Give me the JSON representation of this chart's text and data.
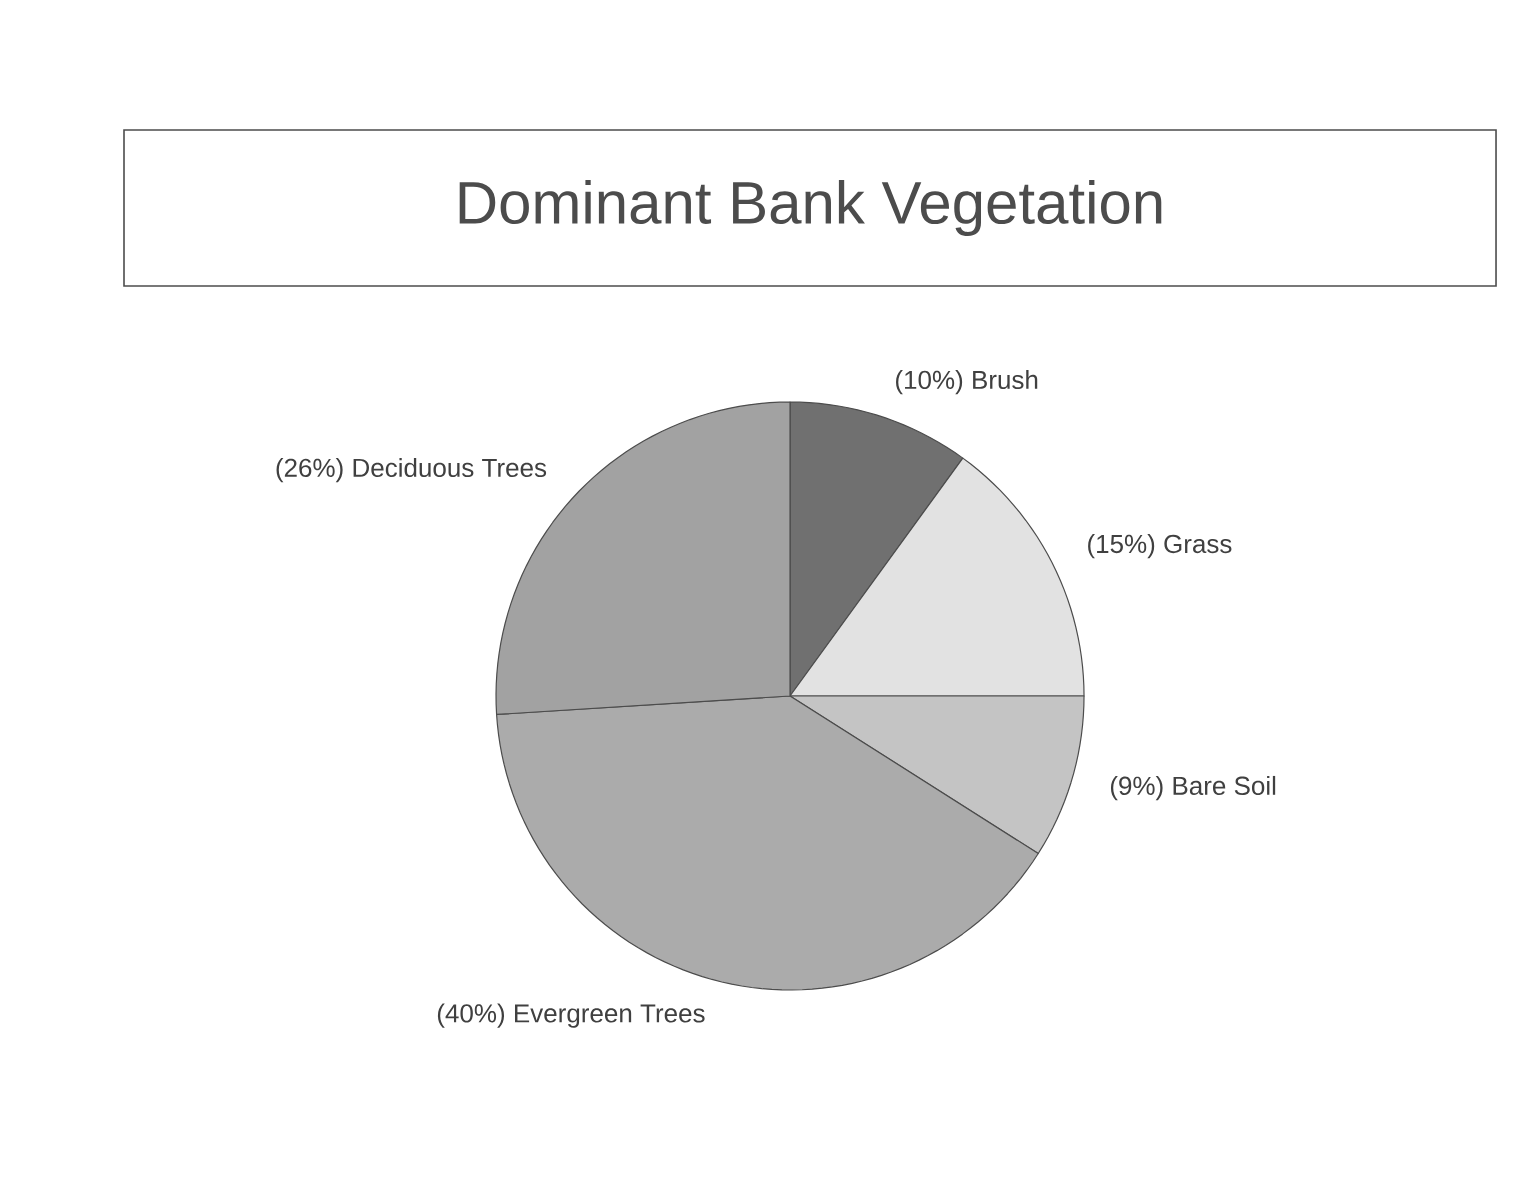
{
  "chart_data": {
    "type": "pie",
    "title": "Dominant Bank Vegetation",
    "categories": [
      "Brush",
      "Grass",
      "Bare Soil",
      "Evergreen Trees",
      "Deciduous Trees"
    ],
    "values": [
      10,
      15,
      9,
      40,
      26
    ],
    "value_labels": [
      "(10%)",
      "(15%)",
      "(9%)",
      "(40%)",
      "(26%)"
    ],
    "colors": [
      "#707070",
      "#e2e2e2",
      "#c4c4c4",
      "#ababab",
      "#a2a2a2"
    ]
  }
}
